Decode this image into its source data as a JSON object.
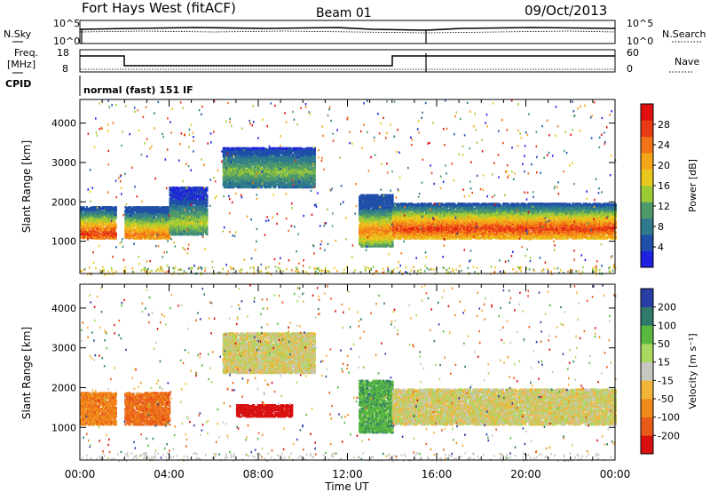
{
  "header": {
    "station": "Fort Hays West (fitACF)",
    "beam": "Beam 01",
    "date": "09/Oct/2013"
  },
  "noise_panel": {
    "left_label": "N.Sky",
    "left_ticks": [
      "10^5",
      "10^0"
    ],
    "right_label": "N.Search",
    "right_ticks": [
      "10^5",
      "10^0"
    ]
  },
  "freq_panel": {
    "left_label_1": "Freq.",
    "left_label_2": "[MHz]",
    "left_ticks": [
      "18",
      "8"
    ],
    "right_label": "Nave",
    "right_ticks": [
      "60",
      "0"
    ],
    "cpid_label": "CPID",
    "cpid_text": "normal (fast) 151 IF"
  },
  "chart_data": [
    {
      "type": "heatmap",
      "panel": "power",
      "ylabel": "Slant Range [km]",
      "ylim": [
        180,
        4600
      ],
      "yticks": [
        1000,
        2000,
        3000,
        4000
      ],
      "colorbar": {
        "label": "Power [dB]",
        "ticks": [
          "4",
          "8",
          "12",
          "16",
          "20",
          "24",
          "28"
        ],
        "colors": [
          "#1f20e0",
          "#1f4fa8",
          "#2f7a8c",
          "#4f9a6a",
          "#9ccb36",
          "#e8c81c",
          "#f5a51a",
          "#f27417",
          "#e83b14",
          "#e01010"
        ]
      },
      "echo_bands": [
        {
          "t_start": 0.0,
          "t_end": 1.6,
          "range_low": 1100,
          "range_high": 1900,
          "peak_range": 1230,
          "max_db": 28
        },
        {
          "t_start": 2.0,
          "t_end": 4.0,
          "range_low": 1100,
          "range_high": 1900,
          "peak_range": 1200,
          "max_db": 24
        },
        {
          "t_start": 4.0,
          "t_end": 5.7,
          "range_low": 1200,
          "range_high": 2400,
          "peak_range": 1500,
          "max_db": 16
        },
        {
          "t_start": 6.4,
          "t_end": 10.5,
          "range_low": 2400,
          "range_high": 3400,
          "peak_range": 2800,
          "max_db": 14
        },
        {
          "t_start": 12.5,
          "t_end": 14.0,
          "range_low": 900,
          "range_high": 2200,
          "peak_range": 1300,
          "max_db": 24
        },
        {
          "t_start": 14.0,
          "t_end": 24.0,
          "range_low": 1100,
          "range_high": 2000,
          "peak_range": 1350,
          "max_db": 28
        }
      ]
    },
    {
      "type": "heatmap",
      "panel": "velocity",
      "ylabel": "Slant Range [km]",
      "xlabel": "Time UT",
      "ylim": [
        180,
        4600
      ],
      "yticks": [
        1000,
        2000,
        3000,
        4000
      ],
      "xticks": [
        "00:00",
        "04:00",
        "08:00",
        "12:00",
        "16:00",
        "20:00",
        "00:00"
      ],
      "colorbar": {
        "label": "Velocity [m s⁻¹]",
        "ticks": [
          "-200",
          "-100",
          "-50",
          "-15",
          "15",
          "50",
          "100",
          "200"
        ],
        "colors": [
          "#d81010",
          "#e85a18",
          "#f08a1a",
          "#f2b53a",
          "#c8c8c0",
          "#a8d860",
          "#58b840",
          "#2f7a6a",
          "#2a3ea8"
        ]
      },
      "echo_bands": [
        {
          "t_start": 0.0,
          "t_end": 1.6,
          "range_low": 1100,
          "range_high": 1900,
          "velocity": -60
        },
        {
          "t_start": 2.0,
          "t_end": 4.0,
          "range_low": 1100,
          "range_high": 1900,
          "velocity": -80
        },
        {
          "t_start": 6.4,
          "t_end": 10.5,
          "range_low": 2400,
          "range_high": 3400,
          "velocity": 0
        },
        {
          "t_start": 7.0,
          "t_end": 9.5,
          "range_low": 1300,
          "range_high": 1600,
          "velocity": -200
        },
        {
          "t_start": 12.5,
          "t_end": 14.0,
          "range_low": 900,
          "range_high": 2200,
          "velocity": 60
        },
        {
          "t_start": 14.0,
          "t_end": 24.0,
          "range_low": 1100,
          "range_high": 2000,
          "velocity": 0
        }
      ]
    }
  ]
}
